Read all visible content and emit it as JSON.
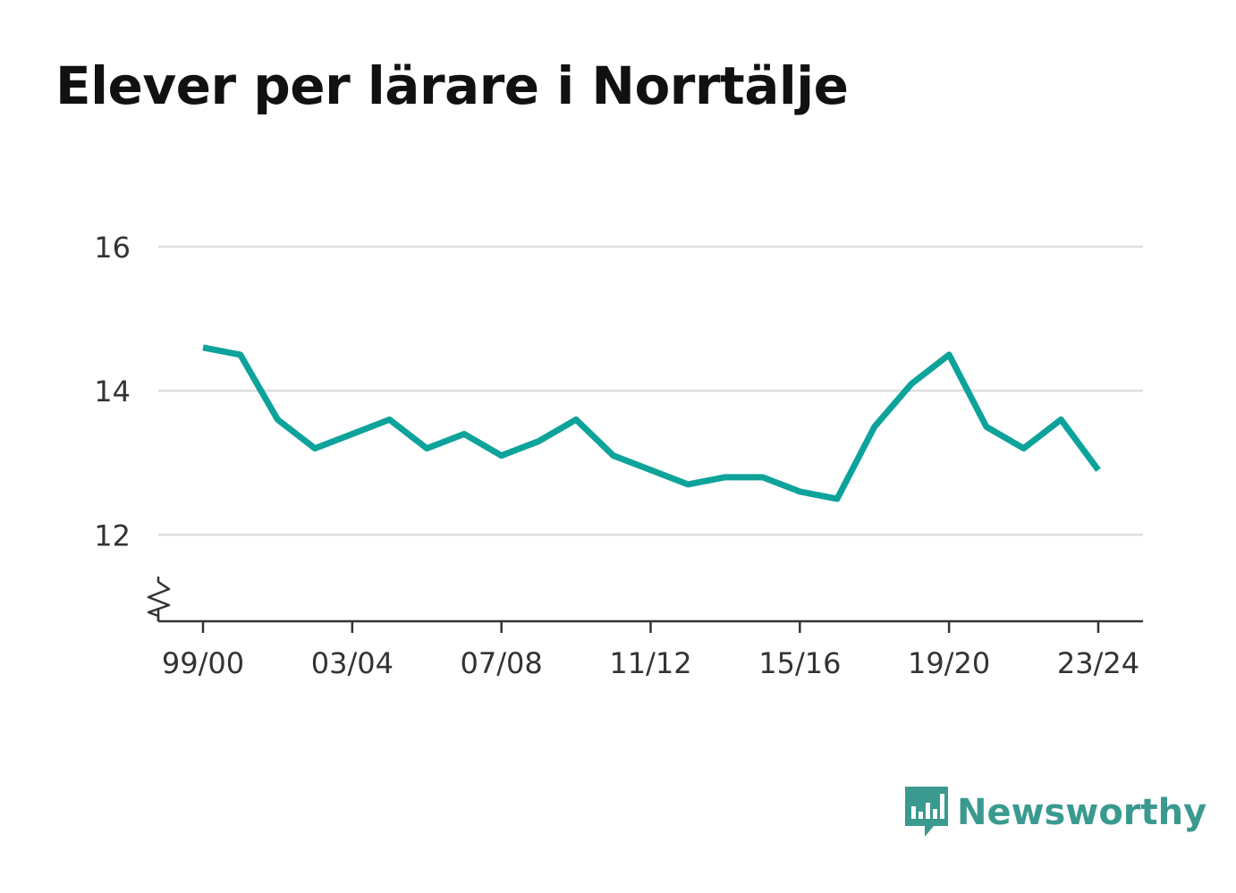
{
  "page": {
    "title": "Elever per lärare i Norrtälje"
  },
  "brand": {
    "name": "Newsworthy",
    "color": "#3a9a8f",
    "logo_icon": "bar-chart-speech-bubble-icon"
  },
  "chart_data": {
    "type": "line",
    "title": "Elever per lärare i Norrtälje",
    "xlabel": "",
    "ylabel": "",
    "x": [
      "99/00",
      "00/01",
      "01/02",
      "02/03",
      "03/04",
      "04/05",
      "05/06",
      "06/07",
      "07/08",
      "08/09",
      "09/10",
      "10/11",
      "11/12",
      "12/13",
      "13/14",
      "14/15",
      "15/16",
      "16/17",
      "17/18",
      "18/19",
      "19/20",
      "20/21",
      "21/22",
      "22/23",
      "23/24"
    ],
    "series": [
      {
        "color": "#0da39b",
        "values": [
          14.6,
          14.5,
          13.6,
          13.2,
          13.4,
          13.6,
          13.2,
          13.4,
          13.1,
          13.3,
          13.6,
          13.1,
          12.9,
          12.7,
          12.8,
          12.8,
          12.6,
          12.5,
          13.5,
          14.1,
          14.5,
          13.5,
          13.2,
          13.6,
          12.9
        ]
      }
    ],
    "x_ticks": [
      "99/00",
      "03/04",
      "07/08",
      "11/12",
      "15/16",
      "19/20",
      "23/24"
    ],
    "y_ticks": [
      12,
      14,
      16
    ],
    "ylim": [
      10.8,
      16
    ],
    "axis_break": true,
    "grid": true,
    "legend": "none"
  }
}
